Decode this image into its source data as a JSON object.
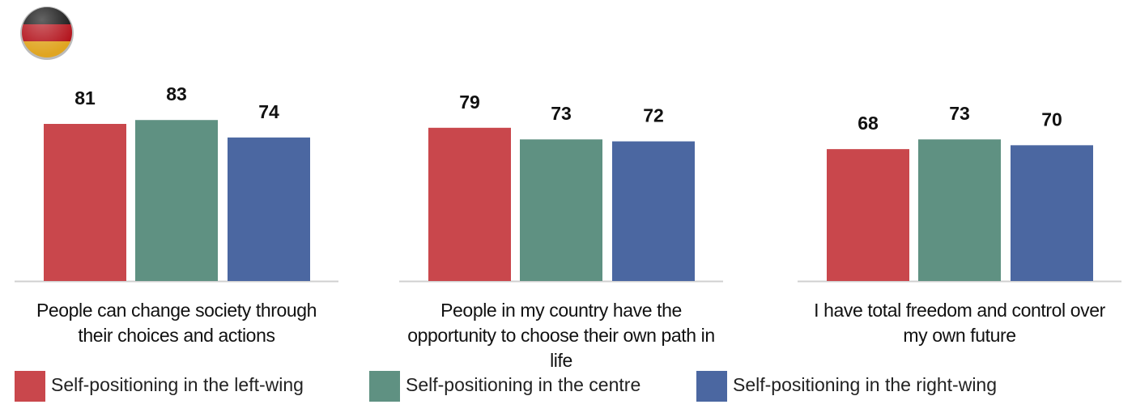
{
  "chart_data": {
    "type": "bar",
    "categories": [
      "People can change society through their choices and actions",
      "People in my country have the opportunity to choose their own path in life",
      "I have total freedom and control over my own future"
    ],
    "series": [
      {
        "name": "Self-positioning in the left-wing",
        "color": "#c9474c",
        "values": [
          81,
          79,
          68
        ]
      },
      {
        "name": "Self-positioning in the centre",
        "color": "#5f9182",
        "values": [
          83,
          73,
          73
        ]
      },
      {
        "name": "Self-positioning in the right-wing",
        "color": "#4b67a1",
        "values": [
          74,
          72,
          70
        ]
      }
    ]
  }
}
